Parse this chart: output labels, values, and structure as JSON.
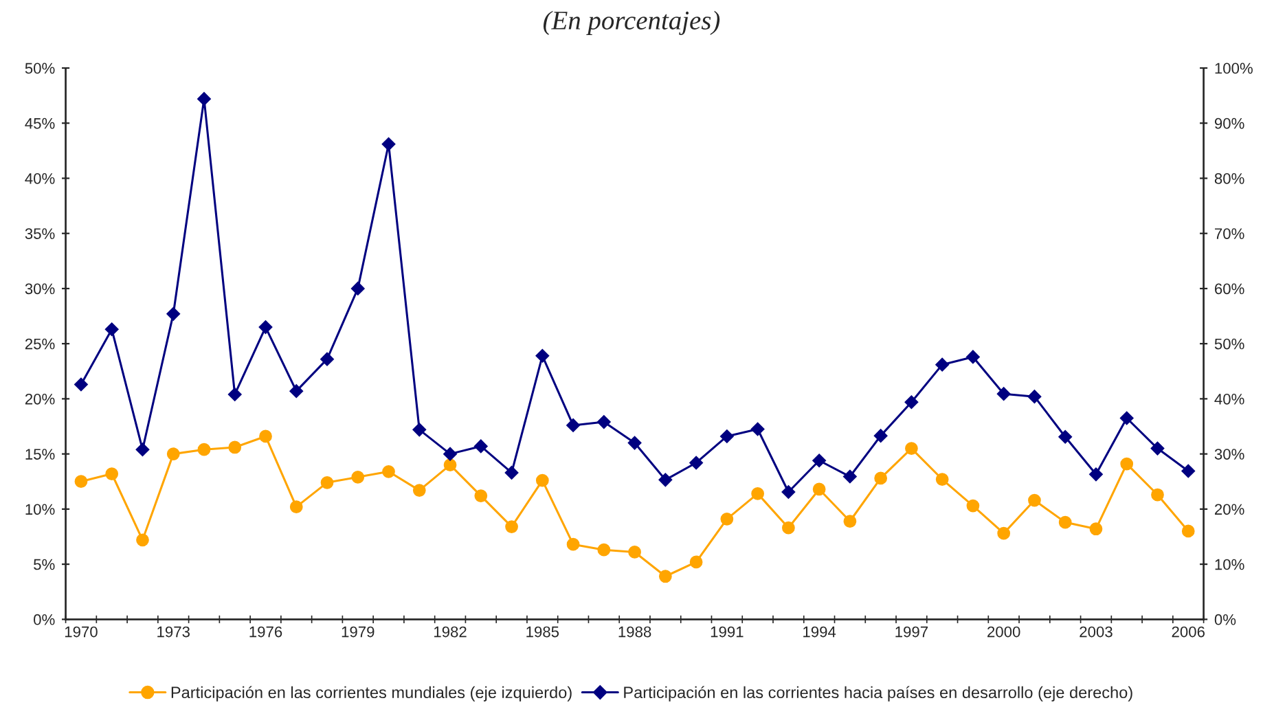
{
  "chart_data": {
    "type": "line",
    "subtitle": "(En porcentajes)",
    "categories": [
      "1970",
      null,
      null,
      "1973",
      null,
      null,
      "1976",
      null,
      null,
      "1979",
      null,
      null,
      "1982",
      null,
      null,
      "1985",
      null,
      null,
      "1988",
      null,
      null,
      "1991",
      null,
      null,
      "1994",
      null,
      null,
      "1997",
      null,
      null,
      "2000",
      null,
      null,
      "2003",
      null,
      null,
      "2006"
    ],
    "series": [
      {
        "name": "Participación en las corrientes mundiales (eje izquierdo)",
        "color": "#ffa500",
        "marker": "circle",
        "values": [
          12.5,
          13.2,
          7.2,
          15.0,
          15.4,
          15.6,
          16.6,
          10.2,
          12.4,
          12.9,
          13.4,
          11.7,
          14.0,
          11.2,
          8.4,
          12.6,
          6.8,
          6.3,
          6.1,
          3.9,
          5.2,
          9.1,
          11.4,
          8.3,
          11.8,
          8.9,
          12.8,
          15.5,
          12.7,
          10.3,
          7.8,
          10.8,
          8.8,
          8.2,
          14.1,
          11.3,
          8.0
        ]
      },
      {
        "name": "Participación en las corrientes hacia países en desarrollo (eje derecho)",
        "color": "#000080",
        "marker": "diamond",
        "axis": "y2",
        "values": [
          42.6,
          52.6,
          30.8,
          55.4,
          94.4,
          40.8,
          53.0,
          41.4,
          47.2,
          60.0,
          86.2,
          34.4,
          30.0,
          31.4,
          26.6,
          47.8,
          35.2,
          35.8,
          32.0,
          25.3,
          28.4,
          33.2,
          34.5,
          23.1,
          28.8,
          25.9,
          33.3,
          39.4,
          46.2,
          47.6,
          40.9,
          40.4,
          33.1,
          26.3,
          36.5,
          31.0,
          26.9
        ]
      }
    ],
    "ylim": [
      0,
      50
    ],
    "yticks": [
      {
        "value": 0,
        "label": "0%"
      },
      {
        "value": 5,
        "label": "5%"
      },
      {
        "value": 10,
        "label": "10%"
      },
      {
        "value": 15,
        "label": "15%"
      },
      {
        "value": 20,
        "label": "20%"
      },
      {
        "value": 25,
        "label": "25%"
      },
      {
        "value": 30,
        "label": "30%"
      },
      {
        "value": 35,
        "label": "35%"
      },
      {
        "value": 40,
        "label": "40%"
      },
      {
        "value": 45,
        "label": "45%"
      },
      {
        "value": 50,
        "label": "50%"
      }
    ],
    "y2lim": [
      0,
      100
    ],
    "y2ticks": [
      {
        "value": 0,
        "label": "0%"
      },
      {
        "value": 10,
        "label": "10%"
      },
      {
        "value": 20,
        "label": "20%"
      },
      {
        "value": 30,
        "label": "30%"
      },
      {
        "value": 40,
        "label": "40%"
      },
      {
        "value": 50,
        "label": "50%"
      },
      {
        "value": 60,
        "label": "60%"
      },
      {
        "value": 70,
        "label": "70%"
      },
      {
        "value": 80,
        "label": "80%"
      },
      {
        "value": 90,
        "label": "90%"
      },
      {
        "value": 100,
        "label": "100%"
      }
    ],
    "legend": "bottom",
    "grid": false,
    "line_style": "solid"
  }
}
